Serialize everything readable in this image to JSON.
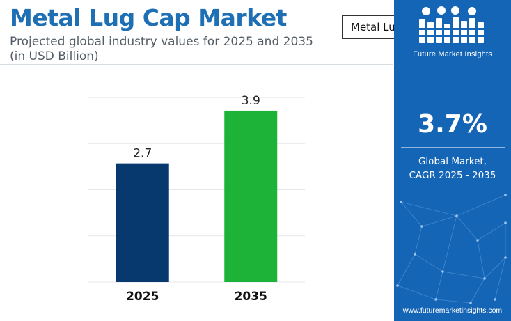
{
  "header": {
    "title": "Metal Lug Cap Market",
    "subtitle": "Projected global industry values for 2025 and 2035 (in USD Billion)"
  },
  "tooltip": {
    "text": "Metal Lug Cap Market"
  },
  "side_panel": {
    "brand": "Future Market Insights",
    "cagr_value": "3.7%",
    "cagr_label_line1": "Global Market,",
    "cagr_label_line2": "CAGR 2025 - 2035",
    "website": "www.futuremarketinsights.com",
    "background_color": "#1565b6"
  },
  "chart_data": {
    "type": "bar",
    "categories": [
      "2025",
      "2035"
    ],
    "values": [
      2.7,
      3.9
    ],
    "data_labels": [
      "2.7",
      "3.9"
    ],
    "colors": [
      "#08396e",
      "#1db238"
    ],
    "ylim": [
      0,
      4.2
    ],
    "grid": true,
    "legend": "none"
  }
}
